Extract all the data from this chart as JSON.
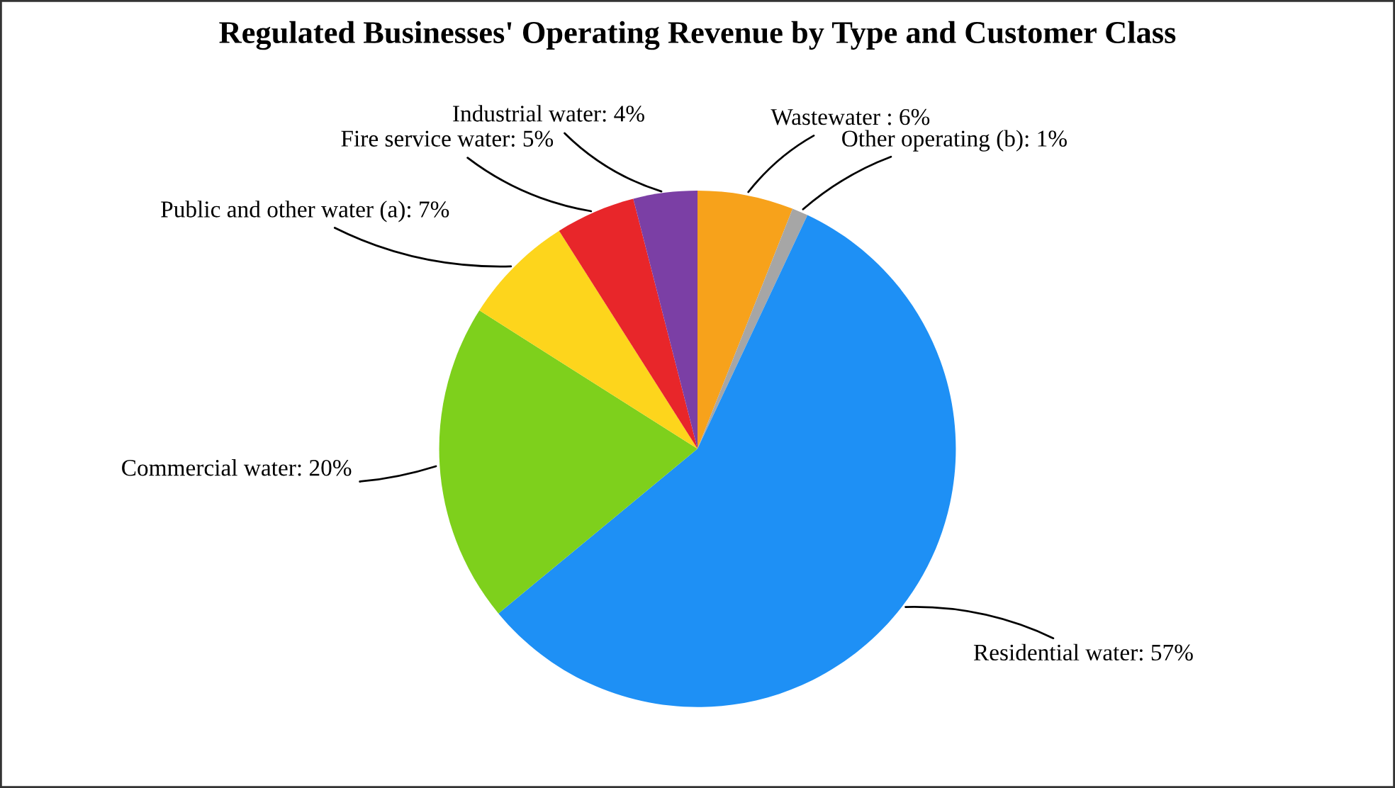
{
  "chart_data": {
    "type": "pie",
    "title": "Regulated Businesses' Operating Revenue by Type and Customer Class",
    "categories": [
      "Wastewater ",
      "Other operating (b)",
      "Residential water",
      "Commercial water",
      "Public and other water (a)",
      "Fire service water",
      "Industrial water"
    ],
    "values": [
      6,
      1,
      57,
      20,
      7,
      5,
      4
    ],
    "value_labels": [
      "6%",
      "1%",
      "57%",
      "20%",
      "7%",
      "5%",
      "4%"
    ],
    "colors": [
      "#f7a21b",
      "#a6a6a6",
      "#1e90f5",
      "#7ed01c",
      "#fdd51c",
      "#e8262a",
      "#7b3fa5"
    ],
    "legend": false
  }
}
